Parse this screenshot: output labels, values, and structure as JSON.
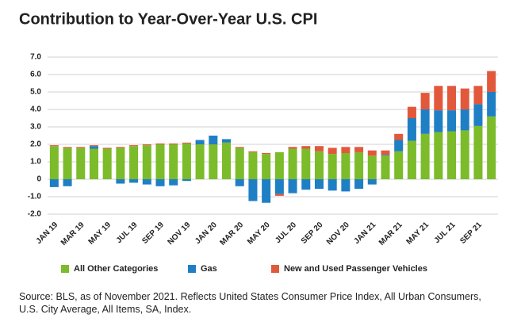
{
  "chart_data": {
    "type": "stacked_bar",
    "title": "Contribution to Year-Over-Year U.S. CPI",
    "source": "Source: BLS, as of November 2021. Reflects United States Consumer Price Index, All Urban Consumers, U.S. City Average, All Items, SA, Index.",
    "categories": [
      "JAN 19",
      null,
      "MAR 19",
      null,
      "MAY 19",
      null,
      "JUL 19",
      null,
      "SEP 19",
      null,
      "NOV 19",
      null,
      "JAN 20",
      null,
      "MAR 20",
      null,
      "MAY 20",
      null,
      "JUL 20",
      null,
      "SEP 20",
      null,
      "NOV 20",
      null,
      "JAN 21",
      null,
      "MAR 21",
      null,
      "MAY 21",
      null,
      "JUL 21",
      null,
      "SEP 21",
      null
    ],
    "series": [
      {
        "name": "All Other Categories",
        "color": "#7cbb2a",
        "values": [
          1.9,
          1.8,
          1.8,
          1.75,
          1.75,
          1.8,
          1.9,
          1.95,
          2.0,
          2.0,
          2.05,
          2.0,
          2.0,
          2.1,
          1.8,
          1.55,
          1.45,
          1.55,
          1.75,
          1.75,
          1.6,
          1.45,
          1.5,
          1.55,
          1.35,
          1.35,
          1.6,
          2.2,
          2.6,
          2.7,
          2.75,
          2.8,
          3.05,
          3.6
        ]
      },
      {
        "name": "Gas",
        "color": "#1f7fc4",
        "values": [
          -0.45,
          -0.4,
          0.0,
          0.15,
          0.0,
          -0.25,
          -0.2,
          -0.3,
          -0.4,
          -0.35,
          -0.1,
          0.25,
          0.5,
          0.2,
          -0.4,
          -1.25,
          -1.35,
          -0.85,
          -0.8,
          -0.6,
          -0.55,
          -0.65,
          -0.7,
          -0.55,
          -0.3,
          0.05,
          0.65,
          1.3,
          1.4,
          1.25,
          1.2,
          1.2,
          1.25,
          1.4
        ]
      },
      {
        "name": "New and Used Passenger Vehicles",
        "color": "#e2583b",
        "values": [
          0.05,
          0.05,
          0.05,
          0.05,
          0.05,
          0.05,
          0.05,
          0.05,
          0.05,
          0.05,
          0.05,
          0.0,
          0.0,
          0.0,
          0.05,
          0.05,
          0.05,
          -0.1,
          0.1,
          0.15,
          0.3,
          0.35,
          0.35,
          0.3,
          0.3,
          0.25,
          0.35,
          0.65,
          0.95,
          1.4,
          1.4,
          1.2,
          1.05,
          1.2
        ]
      }
    ],
    "ylim": [
      -2,
      7
    ],
    "yticks": [
      {
        "value": -2,
        "label": "-2.0"
      },
      {
        "value": -1,
        "label": "-1.0"
      },
      {
        "value": 0,
        "label": "0"
      },
      {
        "value": 1,
        "label": "1.0"
      },
      {
        "value": 2,
        "label": "2.0"
      },
      {
        "value": 3,
        "label": "3.0"
      },
      {
        "value": 4,
        "label": "4.0"
      },
      {
        "value": 5,
        "label": "5.0"
      },
      {
        "value": 6,
        "label": "6.0"
      },
      {
        "value": 7,
        "label": "7.0"
      }
    ],
    "grid": true,
    "legend": "bottom"
  }
}
